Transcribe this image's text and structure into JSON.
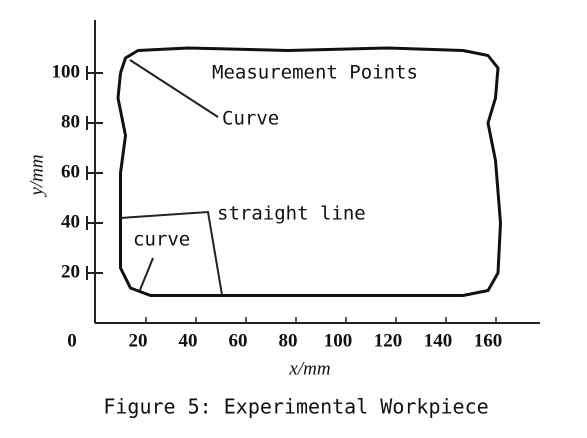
{
  "chart_data": {
    "type": "line",
    "title": "Figure 5: Experimental Workpiece",
    "x_label": "x/mm",
    "y_label": "y/mm",
    "x": [
      13,
      15,
      20,
      40,
      80,
      120,
      150,
      160,
      164,
      163,
      160,
      163,
      165,
      164,
      160,
      150,
      100,
      50,
      25,
      17,
      13,
      13,
      13,
      15,
      12,
      13
    ],
    "series": [
      {
        "color": "#111111",
        "values": [
          100,
          106,
          109,
          110,
          109,
          110,
          109,
          107,
          102,
          90,
          80,
          65,
          40,
          20,
          13,
          11,
          11,
          11,
          11,
          14,
          22,
          40,
          60,
          75,
          90,
          100
        ]
      }
    ],
    "annotations": [
      "Measurement Points",
      "Curve",
      "straight line",
      "curve"
    ],
    "xlim": [
      0,
      180
    ],
    "ylim": [
      0,
      120
    ],
    "xticks": [
      0,
      20,
      40,
      60,
      80,
      100,
      120,
      140,
      160
    ],
    "yticks": [
      20,
      40,
      60,
      80,
      100
    ]
  }
}
